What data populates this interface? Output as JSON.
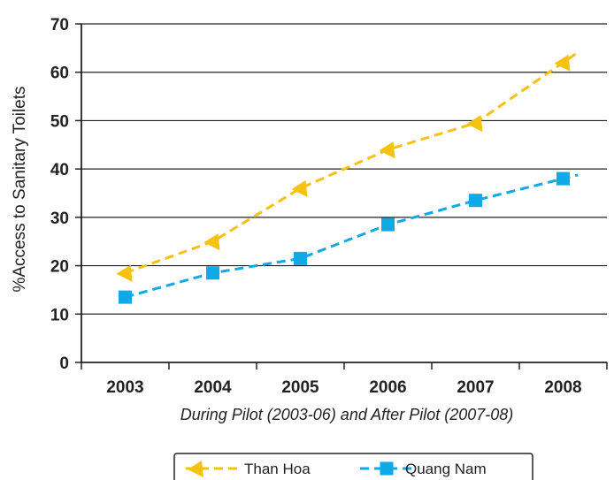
{
  "chart_data": {
    "type": "line",
    "categories": [
      "2003",
      "2004",
      "2005",
      "2006",
      "2007",
      "2008"
    ],
    "y_ticks": [
      "0",
      "10",
      "20",
      "30",
      "40",
      "50",
      "60",
      "70"
    ],
    "ylim": [
      0,
      70
    ],
    "xlabel": "During Pilot (2003-06) and After Pilot (2007-08)",
    "ylabel": "%Access to Sanitary Toilets",
    "grid": "horizontal",
    "legend_position": "bottom",
    "series": [
      {
        "name": "Than Hoa",
        "marker": "left-arrow",
        "color": "#f4c20f",
        "values": [
          18.5,
          25,
          36,
          44,
          49.5,
          62
        ]
      },
      {
        "name": "Quang Nam",
        "marker": "square",
        "color": "#0fa9e6",
        "values": [
          13.5,
          18.5,
          21.5,
          28.5,
          33.5,
          38
        ]
      }
    ]
  }
}
